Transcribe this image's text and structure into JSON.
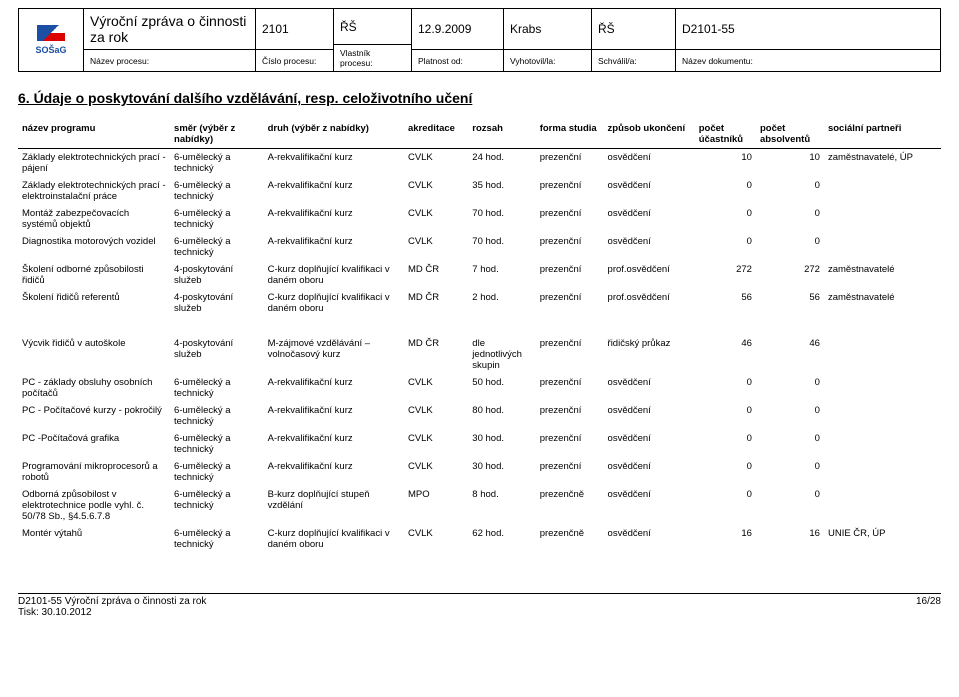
{
  "header": {
    "logo_text": "SOŠaG",
    "title": "Výroční zpráva o činnosti za rok",
    "title_label": "Název procesu:",
    "number": "2101",
    "number_label": "Číslo procesu:",
    "owner": "ŘŠ",
    "owner_label": "Vlastník procesu:",
    "valid_from": "12.9.2009",
    "valid_label": "Platnost od:",
    "made_by": "Krabs",
    "made_label": "Vyhotovil/la:",
    "approved": "ŘŠ",
    "approved_label": "Schválil/a:",
    "doc": "D2101-55",
    "doc_label": "Název dokumentu:"
  },
  "section_title": "6. Údaje o poskytování dalšího vzdělávání, resp. celoživotního učení",
  "columns": {
    "name": "název programu",
    "dir": "směr (výběr z nabídky)",
    "type": "druh (výběr z nabídky)",
    "akr": "akreditace",
    "roz": "rozsah",
    "form": "forma studia",
    "end": "způsob ukončení",
    "part": "počet účastníků",
    "abs": "počet absolventů",
    "soc": "sociální partneři"
  },
  "rows": [
    {
      "name": "Základy elektrotechnických prací - pájení",
      "dir": "6-umělecký a technický",
      "type": "A-rekvalifikační kurz",
      "akr": "CVLK",
      "roz": "24 hod.",
      "form": "prezenční",
      "end": "osvědčení",
      "part": "10",
      "abs": "10",
      "soc": "zaměstnavatelé, ÚP"
    },
    {
      "name": "Základy elektrotechnických prací - elektroinstalační práce",
      "dir": "6-umělecký a technický",
      "type": "A-rekvalifikační kurz",
      "akr": "CVLK",
      "roz": "35 hod.",
      "form": "prezenční",
      "end": "osvědčení",
      "part": "0",
      "abs": "0",
      "soc": ""
    },
    {
      "name": "Montáž zabezpečovacích systémů objektů",
      "dir": "6-umělecký a technický",
      "type": "A-rekvalifikační kurz",
      "akr": "CVLK",
      "roz": "70 hod.",
      "form": "prezenční",
      "end": "osvědčení",
      "part": "0",
      "abs": "0",
      "soc": ""
    },
    {
      "name": "Diagnostika motorových vozidel",
      "dir": "6-umělecký a technický",
      "type": "A-rekvalifikační kurz",
      "akr": "CVLK",
      "roz": "70 hod.",
      "form": "prezenční",
      "end": "osvědčení",
      "part": "0",
      "abs": "0",
      "soc": ""
    },
    {
      "name": "Školení odborné způsobilosti řidičů",
      "dir": "4-poskytování služeb",
      "type": "C-kurz doplňující kvalifikaci v daném oboru",
      "akr": "MD ČR",
      "roz": "7 hod.",
      "form": "prezenční",
      "end": "prof.osvědčení",
      "part": "272",
      "abs": "272",
      "soc": "zaměstnavatelé"
    },
    {
      "name": "Školení řidičů referentů",
      "dir": "4-poskytování služeb",
      "type": "C-kurz doplňující kvalifikaci v daném oboru",
      "akr": "MD ČR",
      "roz": "2 hod.",
      "form": "prezenční",
      "end": "prof.osvědčení",
      "part": "56",
      "abs": "56",
      "soc": "zaměstnavatelé"
    }
  ],
  "rows2": [
    {
      "name": "Výcvik řidičů v autoškole",
      "dir": "4-poskytování služeb",
      "type": "M-zájmové vzdělávání – volnočasový kurz",
      "akr": "MD ČR",
      "roz": "dle jednotlivých skupin",
      "form": "prezenční",
      "end": "řidičský průkaz",
      "part": "46",
      "abs": "46",
      "soc": ""
    },
    {
      "name": "PC - základy obsluhy osobních počítačů",
      "dir": "6-umělecký a technický",
      "type": "A-rekvalifikační kurz",
      "akr": "CVLK",
      "roz": "50 hod.",
      "form": "prezenční",
      "end": "osvědčení",
      "part": "0",
      "abs": "0",
      "soc": ""
    },
    {
      "name": "PC - Počítačové kurzy - pokročilý",
      "dir": "6-umělecký a technický",
      "type": "A-rekvalifikační kurz",
      "akr": "CVLK",
      "roz": "80 hod.",
      "form": "prezenční",
      "end": "osvědčení",
      "part": "0",
      "abs": "0",
      "soc": ""
    },
    {
      "name": "PC -Počítačová grafika",
      "dir": "6-umělecký a technický",
      "type": "A-rekvalifikační kurz",
      "akr": "CVLK",
      "roz": "30 hod.",
      "form": "prezenční",
      "end": "osvědčení",
      "part": "0",
      "abs": "0",
      "soc": ""
    },
    {
      "name": "Programování mikroprocesorů a robotů",
      "dir": "6-umělecký a technický",
      "type": "A-rekvalifikační kurz",
      "akr": "CVLK",
      "roz": "30 hod.",
      "form": "prezenční",
      "end": "osvědčení",
      "part": "0",
      "abs": "0",
      "soc": ""
    },
    {
      "name": "Odborná způsobilost v elektrotechnice podle vyhl. č. 50/78 Sb., §4.5.6.7.8",
      "dir": "6-umělecký a technický",
      "type": "B-kurz doplňující stupeň vzdělání",
      "akr": "MPO",
      "roz": "8 hod.",
      "form": "prezenčně",
      "end": "osvědčení",
      "part": "0",
      "abs": "0",
      "soc": ""
    },
    {
      "name": "Montér výtahů",
      "dir": "6-umělecký a technický",
      "type": "C-kurz doplňující kvalifikaci v daném oboru",
      "akr": "CVLK",
      "roz": "62 hod.",
      "form": "prezenčně",
      "end": "osvědčení",
      "part": "16",
      "abs": "16",
      "soc": "UNIE ČR, ÚP"
    }
  ],
  "footer": {
    "left1": "D2101-55 Výroční zpráva o činnosti za rok",
    "left2": "Tisk: 30.10.2012",
    "right": "16/28"
  }
}
